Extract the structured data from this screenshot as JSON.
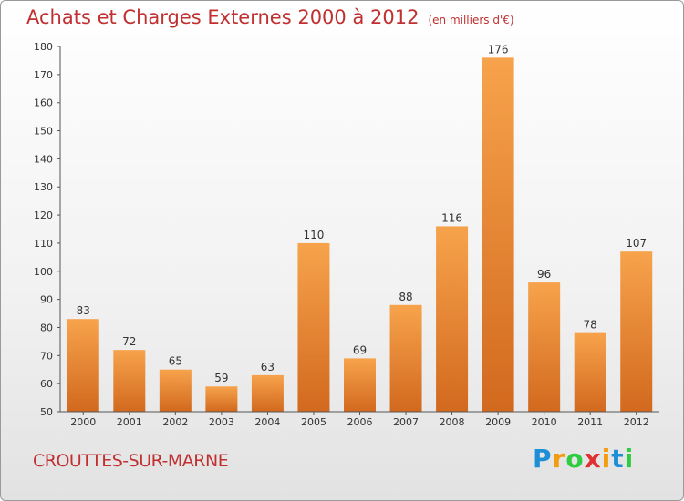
{
  "chart_data": {
    "type": "bar",
    "title": "Achats et Charges Externes 2000 à 2012",
    "subtitle": "(en milliers d'€)",
    "categories": [
      "2000",
      "2001",
      "2002",
      "2003",
      "2004",
      "2005",
      "2006",
      "2007",
      "2008",
      "2009",
      "2010",
      "2011",
      "2012"
    ],
    "values": [
      83,
      72,
      65,
      59,
      63,
      110,
      69,
      88,
      116,
      176,
      96,
      78,
      107
    ],
    "ylim": [
      50,
      180
    ],
    "yticks": [
      50,
      60,
      70,
      80,
      90,
      100,
      110,
      120,
      130,
      140,
      150,
      160,
      170,
      180
    ],
    "grid": false,
    "bar_color_top": "#f7a34c",
    "bar_color_bottom": "#d2691e"
  },
  "footer": {
    "city": "CROUTTES-SUR-MARNE",
    "logo_letters": [
      "P",
      "r",
      "o",
      "x",
      "i",
      "t",
      "i"
    ],
    "logo_colors": [
      "#1e8fd6",
      "#f39c12",
      "#2ecc40",
      "#e03030",
      "#f39c12",
      "#1e8fd6",
      "#2ecc40"
    ]
  }
}
